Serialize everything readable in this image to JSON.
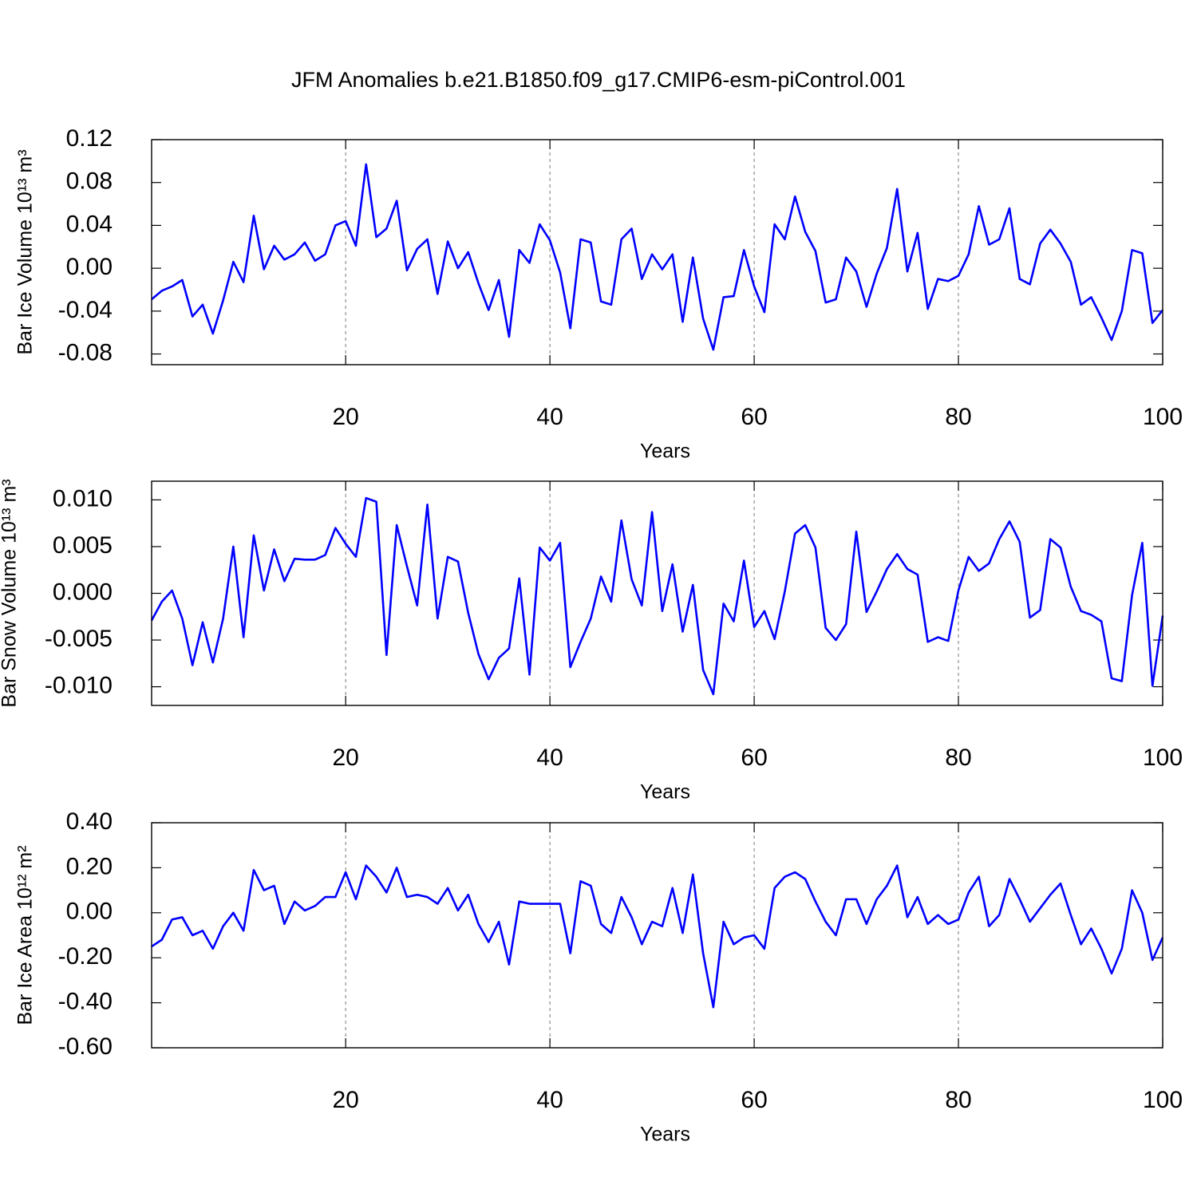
{
  "title": "JFM Anomalies b.e21.B1850.f09_g17.CMIP6-esm-piControl.001",
  "chart_data": [
    {
      "type": "line",
      "xlabel": "Years",
      "ylabel": "Bar Ice Volume 10¹³ m³",
      "color": "#0000ff",
      "grid": "x",
      "xlim": [
        1,
        100
      ],
      "xticks": [
        20,
        40,
        60,
        80,
        100
      ],
      "ylim": [
        -0.09,
        0.12
      ],
      "yticks": [
        0.12,
        0.08,
        0.04,
        {
          "value": 0,
          "label": "0.00"
        },
        -0.04,
        -0.08
      ],
      "x": [
        1,
        2,
        3,
        4,
        5,
        6,
        7,
        8,
        9,
        10,
        11,
        12,
        13,
        14,
        15,
        16,
        17,
        18,
        19,
        20,
        21,
        22,
        23,
        24,
        25,
        26,
        27,
        28,
        29,
        30,
        31,
        32,
        33,
        34,
        35,
        36,
        37,
        38,
        39,
        40,
        41,
        42,
        43,
        44,
        45,
        46,
        47,
        48,
        49,
        50,
        51,
        52,
        53,
        54,
        55,
        56,
        57,
        58,
        59,
        60,
        61,
        62,
        63,
        64,
        65,
        66,
        67,
        68,
        69,
        70,
        71,
        72,
        73,
        74,
        75,
        76,
        77,
        78,
        79,
        80,
        81,
        82,
        83,
        84,
        85,
        86,
        87,
        88,
        89,
        90,
        91,
        92,
        93,
        94,
        95,
        96,
        97,
        98,
        99,
        100
      ],
      "values": [
        -0.029,
        -0.021,
        -0.017,
        -0.011,
        -0.045,
        -0.034,
        -0.061,
        -0.03,
        0.006,
        -0.013,
        0.049,
        -0.001,
        0.021,
        0.008,
        0.013,
        0.024,
        0.007,
        0.013,
        0.04,
        0.044,
        0.021,
        0.097,
        0.029,
        0.037,
        0.063,
        -0.002,
        0.018,
        0.027,
        -0.024,
        0.025,
        0.0,
        0.015,
        -0.014,
        -0.039,
        -0.011,
        -0.064,
        0.017,
        0.005,
        0.041,
        0.026,
        -0.004,
        -0.056,
        0.027,
        0.024,
        -0.031,
        -0.034,
        0.027,
        0.037,
        -0.01,
        0.013,
        -0.001,
        0.013,
        -0.05,
        0.01,
        -0.047,
        -0.076,
        -0.027,
        -0.026,
        0.017,
        -0.017,
        -0.041,
        0.041,
        0.027,
        0.067,
        0.034,
        0.016,
        -0.032,
        -0.029,
        0.01,
        -0.003,
        -0.036,
        -0.005,
        0.019,
        0.074,
        -0.003,
        0.033,
        -0.038,
        -0.01,
        -0.012,
        -0.007,
        0.013,
        0.058,
        0.022,
        0.027,
        0.056,
        -0.01,
        -0.015,
        0.023,
        0.036,
        0.023,
        0.006,
        -0.034,
        -0.027,
        -0.046,
        -0.067,
        -0.04,
        0.017,
        0.014,
        -0.051,
        -0.039
      ]
    },
    {
      "type": "line",
      "xlabel": "Years",
      "ylabel": "Bar Snow Volume 10¹³ m³",
      "color": "#0000ff",
      "grid": "x",
      "xlim": [
        1,
        100
      ],
      "xticks": [
        20,
        40,
        60,
        80,
        100
      ],
      "ylim": [
        -0.012,
        0.012
      ],
      "yticks": [
        {
          "value": 0.01,
          "label": "0.010"
        },
        {
          "value": 0.005,
          "label": "0.005"
        },
        {
          "value": 0,
          "label": "0.000"
        },
        {
          "value": -0.005,
          "label": "-0.005"
        },
        {
          "value": -0.01,
          "label": "-0.010"
        }
      ],
      "x": [
        1,
        2,
        3,
        4,
        5,
        6,
        7,
        8,
        9,
        10,
        11,
        12,
        13,
        14,
        15,
        16,
        17,
        18,
        19,
        20,
        21,
        22,
        23,
        24,
        25,
        26,
        27,
        28,
        29,
        30,
        31,
        32,
        33,
        34,
        35,
        36,
        37,
        38,
        39,
        40,
        41,
        42,
        43,
        44,
        45,
        46,
        47,
        48,
        49,
        50,
        51,
        52,
        53,
        54,
        55,
        56,
        57,
        58,
        59,
        60,
        61,
        62,
        63,
        64,
        65,
        66,
        67,
        68,
        69,
        70,
        71,
        72,
        73,
        74,
        75,
        76,
        77,
        78,
        79,
        80,
        81,
        82,
        83,
        84,
        85,
        86,
        87,
        88,
        89,
        90,
        91,
        92,
        93,
        94,
        95,
        96,
        97,
        98,
        99,
        100
      ],
      "values": [
        -0.0029,
        -0.0009,
        0.0003,
        -0.0027,
        -0.0077,
        -0.0031,
        -0.0074,
        -0.0027,
        0.005,
        -0.0047,
        0.0062,
        0.0003,
        0.0047,
        0.0013,
        0.0037,
        0.0036,
        0.0036,
        0.0041,
        0.007,
        0.0053,
        0.0039,
        0.0102,
        0.0098,
        -0.0066,
        0.0073,
        0.0029,
        -0.0013,
        0.0095,
        -0.0027,
        0.0039,
        0.0034,
        -0.0021,
        -0.0065,
        -0.0092,
        -0.0069,
        -0.0059,
        0.0016,
        -0.0087,
        0.0049,
        0.0035,
        0.0054,
        -0.0079,
        -0.0052,
        -0.0027,
        0.0018,
        -0.0009,
        0.0078,
        0.0015,
        -0.0013,
        0.0087,
        -0.0019,
        0.0031,
        -0.0041,
        0.0009,
        -0.0082,
        -0.0108,
        -0.0011,
        -0.003,
        0.0035,
        -0.0036,
        -0.0019,
        -0.0049,
        0.0002,
        0.0064,
        0.0073,
        0.0049,
        -0.0037,
        -0.005,
        -0.0033,
        0.0066,
        -0.002,
        0.0002,
        0.0026,
        0.0042,
        0.0026,
        0.002,
        -0.0052,
        -0.0047,
        -0.0051,
        0.0003,
        0.0039,
        0.0024,
        0.0032,
        0.0058,
        0.0077,
        0.0055,
        -0.0026,
        -0.0018,
        0.0058,
        0.0049,
        0.0007,
        -0.0019,
        -0.0023,
        -0.003,
        -0.0091,
        -0.0094,
        -0.0002,
        0.0054,
        -0.0099,
        -0.0024
      ]
    },
    {
      "type": "line",
      "xlabel": "Years",
      "ylabel": "Bar Ice Area 10¹² m²",
      "color": "#0000ff",
      "grid": "x",
      "xlim": [
        1,
        100
      ],
      "xticks": [
        20,
        40,
        60,
        80,
        100
      ],
      "ylim": [
        -0.6,
        0.4
      ],
      "yticks": [
        {
          "value": 0.4,
          "label": "0.40"
        },
        {
          "value": 0.2,
          "label": "0.20"
        },
        {
          "value": 0,
          "label": "0.00"
        },
        {
          "value": -0.2,
          "label": "-0.20"
        },
        {
          "value": -0.4,
          "label": "-0.40"
        },
        {
          "value": -0.6,
          "label": "-0.60"
        }
      ],
      "x": [
        1,
        2,
        3,
        4,
        5,
        6,
        7,
        8,
        9,
        10,
        11,
        12,
        13,
        14,
        15,
        16,
        17,
        18,
        19,
        20,
        21,
        22,
        23,
        24,
        25,
        26,
        27,
        28,
        29,
        30,
        31,
        32,
        33,
        34,
        35,
        36,
        37,
        38,
        39,
        40,
        41,
        42,
        43,
        44,
        45,
        46,
        47,
        48,
        49,
        50,
        51,
        52,
        53,
        54,
        55,
        56,
        57,
        58,
        59,
        60,
        61,
        62,
        63,
        64,
        65,
        66,
        67,
        68,
        69,
        70,
        71,
        72,
        73,
        74,
        75,
        76,
        77,
        78,
        79,
        80,
        81,
        82,
        83,
        84,
        85,
        86,
        87,
        88,
        89,
        90,
        91,
        92,
        93,
        94,
        95,
        96,
        97,
        98,
        99,
        100
      ],
      "values": [
        -0.15,
        -0.12,
        -0.03,
        -0.02,
        -0.1,
        -0.08,
        -0.16,
        -0.06,
        0.0,
        -0.08,
        0.19,
        0.1,
        0.12,
        -0.05,
        0.05,
        0.01,
        0.03,
        0.07,
        0.07,
        0.18,
        0.06,
        0.21,
        0.16,
        0.09,
        0.2,
        0.07,
        0.08,
        0.07,
        0.04,
        0.11,
        0.01,
        0.08,
        -0.05,
        -0.13,
        -0.04,
        -0.23,
        0.05,
        0.04,
        0.04,
        0.04,
        0.04,
        -0.18,
        0.14,
        0.12,
        -0.05,
        -0.09,
        0.07,
        -0.02,
        -0.14,
        -0.04,
        -0.06,
        0.11,
        -0.09,
        0.17,
        -0.18,
        -0.42,
        -0.04,
        -0.14,
        -0.11,
        -0.1,
        -0.16,
        0.11,
        0.16,
        0.18,
        0.15,
        0.05,
        -0.04,
        -0.1,
        0.06,
        0.06,
        -0.05,
        0.06,
        0.12,
        0.21,
        -0.02,
        0.07,
        -0.05,
        -0.01,
        -0.05,
        -0.03,
        0.09,
        0.16,
        -0.06,
        -0.01,
        0.15,
        0.06,
        -0.04,
        0.02,
        0.08,
        0.13,
        -0.01,
        -0.14,
        -0.07,
        -0.16,
        -0.27,
        -0.16,
        0.1,
        0.0,
        -0.21,
        -0.11
      ]
    }
  ]
}
